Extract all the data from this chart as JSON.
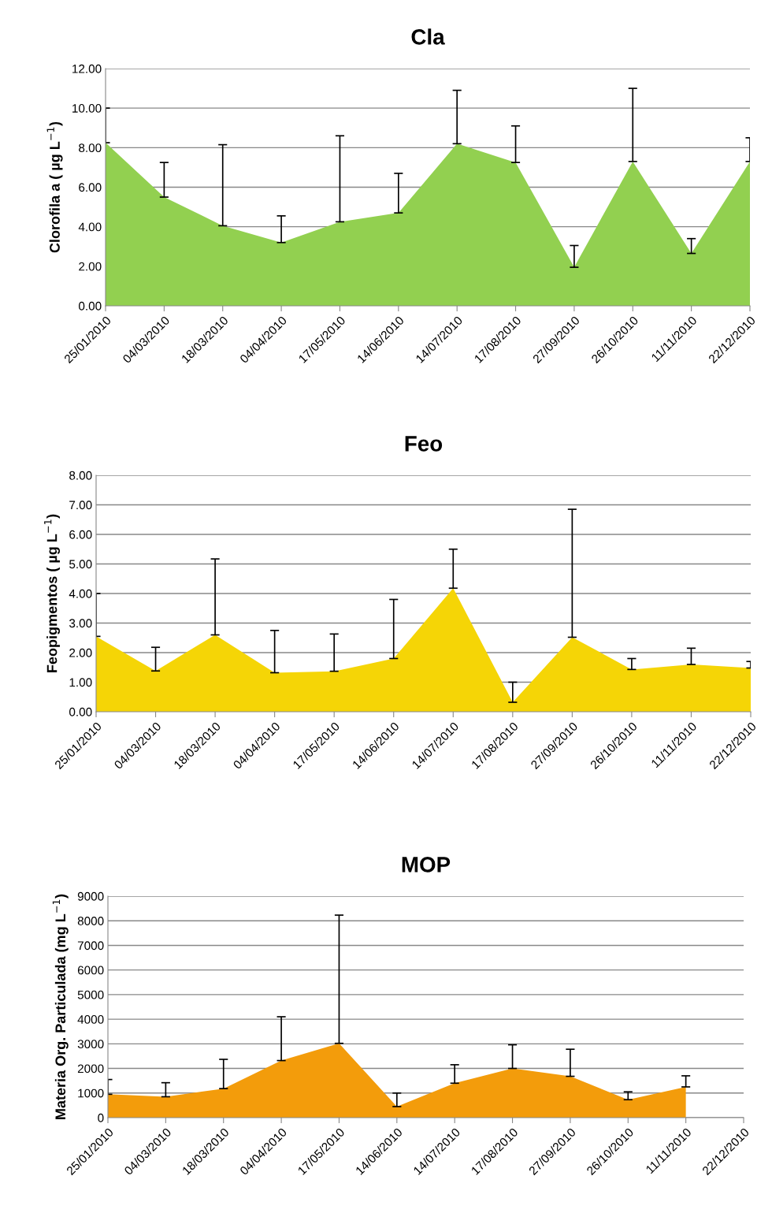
{
  "chart_data": [
    {
      "type": "area",
      "title": "Cla",
      "ylabel": "Clorofila a ( µg L$^{−1}$)",
      "categories": [
        "25/01/2010",
        "04/03/2010",
        "18/03/2010",
        "04/04/2010",
        "17/05/2010",
        "14/06/2010",
        "14/07/2010",
        "17/08/2010",
        "27/09/2010",
        "26/10/2010",
        "11/11/2010",
        "22/12/2010"
      ],
      "values": [
        8.25,
        5.5,
        4.05,
        3.2,
        4.25,
        4.7,
        8.2,
        7.25,
        1.95,
        7.3,
        2.65,
        7.3
      ],
      "errors": [
        [
          8.25,
          10.0
        ],
        [
          5.5,
          7.25
        ],
        [
          4.05,
          8.15
        ],
        [
          3.2,
          4.55
        ],
        [
          4.25,
          8.6
        ],
        [
          4.7,
          6.7
        ],
        [
          8.2,
          10.9
        ],
        [
          7.25,
          9.1
        ],
        [
          1.95,
          3.05
        ],
        [
          7.3,
          11.0
        ],
        [
          2.65,
          3.4
        ],
        [
          7.3,
          8.5
        ]
      ],
      "color": "#92d050",
      "ylim": [
        0,
        12
      ],
      "yticks": [
        {
          "value": 0,
          "label": "0.00"
        },
        {
          "value": 2,
          "label": "2.00"
        },
        {
          "value": 4,
          "label": "4.00"
        },
        {
          "value": 6,
          "label": "6.00"
        },
        {
          "value": 8,
          "label": "8.00"
        },
        {
          "value": 10,
          "label": "10.00"
        },
        {
          "value": 12,
          "label": "12.00"
        }
      ],
      "grid": "y",
      "legend": false
    },
    {
      "type": "area",
      "title": "Feo",
      "ylabel": "Feopigmentos ( µg L$^{−1}$)",
      "categories": [
        "25/01/2010",
        "04/03/2010",
        "18/03/2010",
        "04/04/2010",
        "17/05/2010",
        "14/06/2010",
        "14/07/2010",
        "17/08/2010",
        "27/09/2010",
        "26/10/2010",
        "11/11/2010",
        "22/12/2010"
      ],
      "values": [
        2.55,
        1.38,
        2.6,
        1.32,
        1.37,
        1.8,
        4.18,
        0.32,
        2.52,
        1.43,
        1.6,
        1.48
      ],
      "errors": [
        [
          2.55,
          4.0
        ],
        [
          1.38,
          2.18
        ],
        [
          2.6,
          5.17
        ],
        [
          1.32,
          2.75
        ],
        [
          1.37,
          2.63
        ],
        [
          1.8,
          3.8
        ],
        [
          4.18,
          5.5
        ],
        [
          0.32,
          1.0
        ],
        [
          2.52,
          6.85
        ],
        [
          1.43,
          1.8
        ],
        [
          1.6,
          2.15
        ],
        [
          1.48,
          1.7
        ]
      ],
      "color": "#f5d506",
      "ylim": [
        0,
        8
      ],
      "yticks": [
        {
          "value": 0,
          "label": "0.00"
        },
        {
          "value": 1,
          "label": "1.00"
        },
        {
          "value": 2,
          "label": "2.00"
        },
        {
          "value": 3,
          "label": "3.00"
        },
        {
          "value": 4,
          "label": "4.00"
        },
        {
          "value": 5,
          "label": "5.00"
        },
        {
          "value": 6,
          "label": "6.00"
        },
        {
          "value": 7,
          "label": "7.00"
        },
        {
          "value": 8,
          "label": "8.00"
        }
      ],
      "grid": "y",
      "legend": false
    },
    {
      "type": "area",
      "title": "MOP",
      "ylabel": "Materia Org. Particulada (mg L$^{−1}$)",
      "categories": [
        "25/01/2010",
        "04/03/2010",
        "18/03/2010",
        "04/04/2010",
        "17/05/2010",
        "14/06/2010",
        "14/07/2010",
        "17/08/2010",
        "27/09/2010",
        "26/10/2010",
        "11/11/2010",
        "22/12/2010"
      ],
      "values": [
        950,
        850,
        1180,
        2320,
        3020,
        450,
        1400,
        2000,
        1680,
        730,
        1250,
        null
      ],
      "errors": [
        [
          950,
          1550
        ],
        [
          850,
          1420
        ],
        [
          1180,
          2370
        ],
        [
          2320,
          4100
        ],
        [
          3020,
          8230
        ],
        [
          450,
          1000
        ],
        [
          1400,
          2150
        ],
        [
          2000,
          2960
        ],
        [
          1680,
          2780
        ],
        [
          730,
          1050
        ],
        [
          1250,
          1700
        ],
        null
      ],
      "color": "#f39c0b",
      "ylim": [
        0,
        9000
      ],
      "yticks": [
        0,
        1000,
        2000,
        3000,
        4000,
        5000,
        6000,
        7000,
        8000,
        9000
      ],
      "grid": "y",
      "legend": false
    }
  ]
}
